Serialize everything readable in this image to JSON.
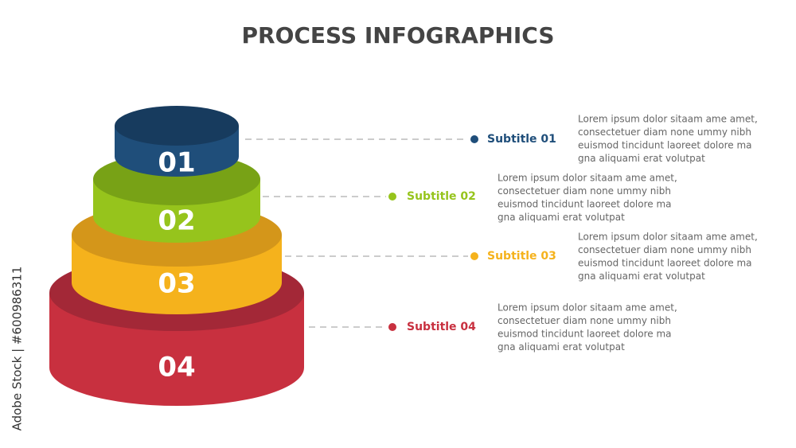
{
  "header": {
    "title": "PROCESS INFOGRAPHICS"
  },
  "side_text": "Adobe Stock | #600986311",
  "steps": [
    {
      "number": "01",
      "subtitle": "Subtitle 01",
      "lines": [
        "Lorem ipsum dolor sitaam ame amet,",
        "consectetuer diam none ummy  nibh",
        "euismod tincidunt laoreet dolore ma",
        "gna aliquami erat volutpat"
      ]
    },
    {
      "number": "02",
      "subtitle": "Subtitle 02",
      "lines": [
        "Lorem ipsum dolor sitaam ame amet,",
        "consectetuer diam none ummy  nibh",
        "euismod tincidunt laoreet dolore ma",
        "gna aliquami erat volutpat"
      ]
    },
    {
      "number": "03",
      "subtitle": "Subtitle 03",
      "lines": [
        "Lorem ipsum dolor sitaam ame amet,",
        "consectetuer diam none ummy  nibh",
        "euismod tincidunt laoreet dolore ma",
        "gna aliquami erat volutpat"
      ]
    },
    {
      "number": "04",
      "subtitle": "Subtitle 04",
      "lines": [
        "Lorem ipsum dolor sitaam ame amet,",
        "consectetuer diam none ummy  nibh",
        "euismod tincidunt laoreet dolore ma",
        "gna aliquami erat volutpat"
      ]
    }
  ]
}
